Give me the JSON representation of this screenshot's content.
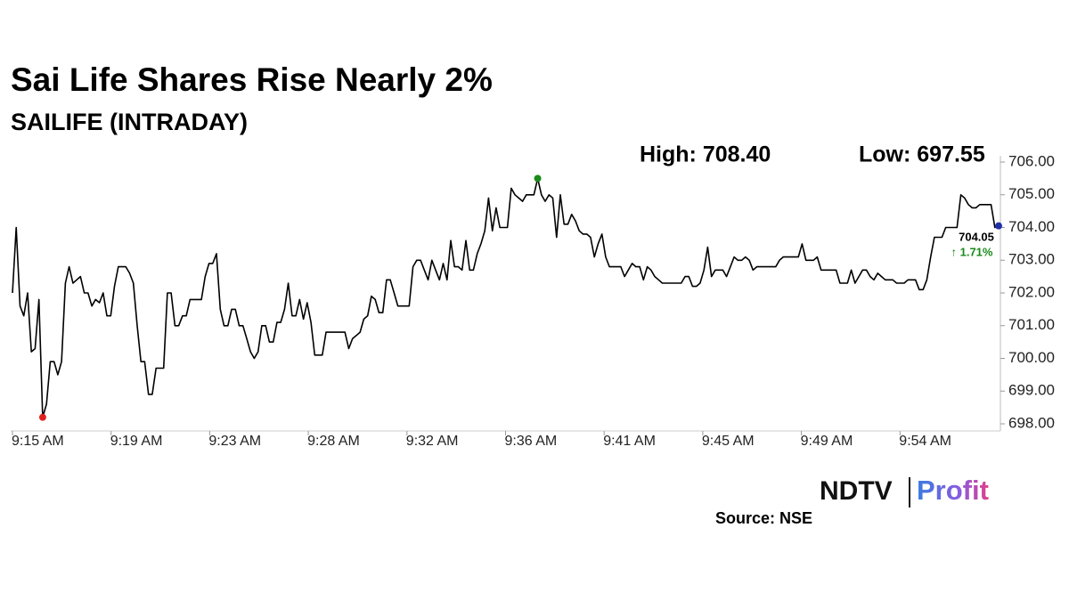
{
  "chart_data": {
    "type": "line",
    "title": "Sai Life Shares Rise Nearly 2%",
    "subtitle": "SAILIFE (INTRADAY)",
    "high_label": "High: 708.40",
    "low_label": "Low: 697.55",
    "last_label": "704.05",
    "change_label": "↑ 1.71%",
    "source": "Source: NSE",
    "logo": [
      "NDTV",
      "Profit"
    ],
    "time_labels": [
      "9:15 AM",
      "9:19 AM",
      "9:23 AM",
      "9:28 AM",
      "9:32 AM",
      "9:36 AM",
      "9:41 AM",
      "9:45 AM",
      "9:49 AM",
      "9:54 AM"
    ],
    "color": "#000000",
    "high_color": "#1a8a1a",
    "low_color": "#e02020",
    "last_color": "#1f2fa8",
    "change_color": "#1a8a1a",
    "ylim": [
      698,
      706
    ],
    "yticks": [
      {
        "value": 698,
        "label": "698.00"
      },
      {
        "value": 699,
        "label": "699.00"
      },
      {
        "value": 700,
        "label": "700.00"
      },
      {
        "value": 701,
        "label": "701.00"
      },
      {
        "value": 702,
        "label": "702.00"
      },
      {
        "value": 703,
        "label": "703.00"
      },
      {
        "value": 704,
        "label": "704.00"
      },
      {
        "value": 705,
        "label": "705.00"
      },
      {
        "value": 706,
        "label": "706.00"
      }
    ],
    "values": [
      702.0,
      704.0,
      701.6,
      701.3,
      702.0,
      700.2,
      700.3,
      701.8,
      698.2,
      698.6,
      699.9,
      699.9,
      699.5,
      699.9,
      702.3,
      702.8,
      702.3,
      702.4,
      702.5,
      702.0,
      702.0,
      701.6,
      701.8,
      701.7,
      702.0,
      701.3,
      701.3,
      702.2,
      702.8,
      702.8,
      702.8,
      702.6,
      702.3,
      701.0,
      699.9,
      699.9,
      698.9,
      698.9,
      699.7,
      699.7,
      699.7,
      702.0,
      702.0,
      701.0,
      701.0,
      701.3,
      701.3,
      701.8,
      701.8,
      701.8,
      701.8,
      702.5,
      702.9,
      702.9,
      703.2,
      701.5,
      701.0,
      701.0,
      701.5,
      701.5,
      701.0,
      701.0,
      700.6,
      700.2,
      700.0,
      700.2,
      701.0,
      701.0,
      700.5,
      700.5,
      701.1,
      701.1,
      701.5,
      702.3,
      701.3,
      701.3,
      701.8,
      701.2,
      701.7,
      701.1,
      700.1,
      700.1,
      700.1,
      700.8,
      700.8,
      700.8,
      700.8,
      700.8,
      700.8,
      700.3,
      700.6,
      700.7,
      700.8,
      701.2,
      701.3,
      701.9,
      701.8,
      701.4,
      701.4,
      702.4,
      702.4,
      702.0,
      701.6,
      701.6,
      701.6,
      701.6,
      702.8,
      703.0,
      703.0,
      702.7,
      702.4,
      703.0,
      702.7,
      702.4,
      702.9,
      702.4,
      703.6,
      702.8,
      702.8,
      702.7,
      703.6,
      702.7,
      702.7,
      703.2,
      703.5,
      703.9,
      704.9,
      703.9,
      704.6,
      704.0,
      704.0,
      704.0,
      705.2,
      705.0,
      704.9,
      704.8,
      705.0,
      705.0,
      705.0,
      705.5,
      705.0,
      704.8,
      705.0,
      704.9,
      703.7,
      705.0,
      704.1,
      704.1,
      704.4,
      704.2,
      703.9,
      703.8,
      703.8,
      703.7,
      703.1,
      703.5,
      703.8,
      703.1,
      702.8,
      702.8,
      702.8,
      702.8,
      702.5,
      702.7,
      702.9,
      702.8,
      702.8,
      702.4,
      702.8,
      702.7,
      702.5,
      702.4,
      702.3,
      702.3,
      702.3,
      702.3,
      702.3,
      702.3,
      702.5,
      702.5,
      702.2,
      702.2,
      702.3,
      702.7,
      703.4,
      702.5,
      702.7,
      702.7,
      702.7,
      702.5,
      702.8,
      703.1,
      703.0,
      703.0,
      703.1,
      703.0,
      702.7,
      702.8,
      702.8,
      702.8,
      702.8,
      702.8,
      702.8,
      703.0,
      703.1,
      703.1,
      703.1,
      703.1,
      703.1,
      703.5,
      703.0,
      703.0,
      703.0,
      703.1,
      702.7,
      702.7,
      702.7,
      702.7,
      702.7,
      702.3,
      702.3,
      702.3,
      702.7,
      702.3,
      702.5,
      702.7,
      702.7,
      702.5,
      702.4,
      702.6,
      702.5,
      702.4,
      702.4,
      702.4,
      702.3,
      702.3,
      702.3,
      702.4,
      702.4,
      702.4,
      702.1,
      702.1,
      702.4,
      703.1,
      703.7,
      703.7,
      703.7,
      704.0,
      704.0,
      704.0,
      704.0,
      705.0,
      704.9,
      704.7,
      704.6,
      704.6,
      704.7,
      704.7,
      704.7,
      704.7,
      704.0,
      704.05
    ]
  }
}
